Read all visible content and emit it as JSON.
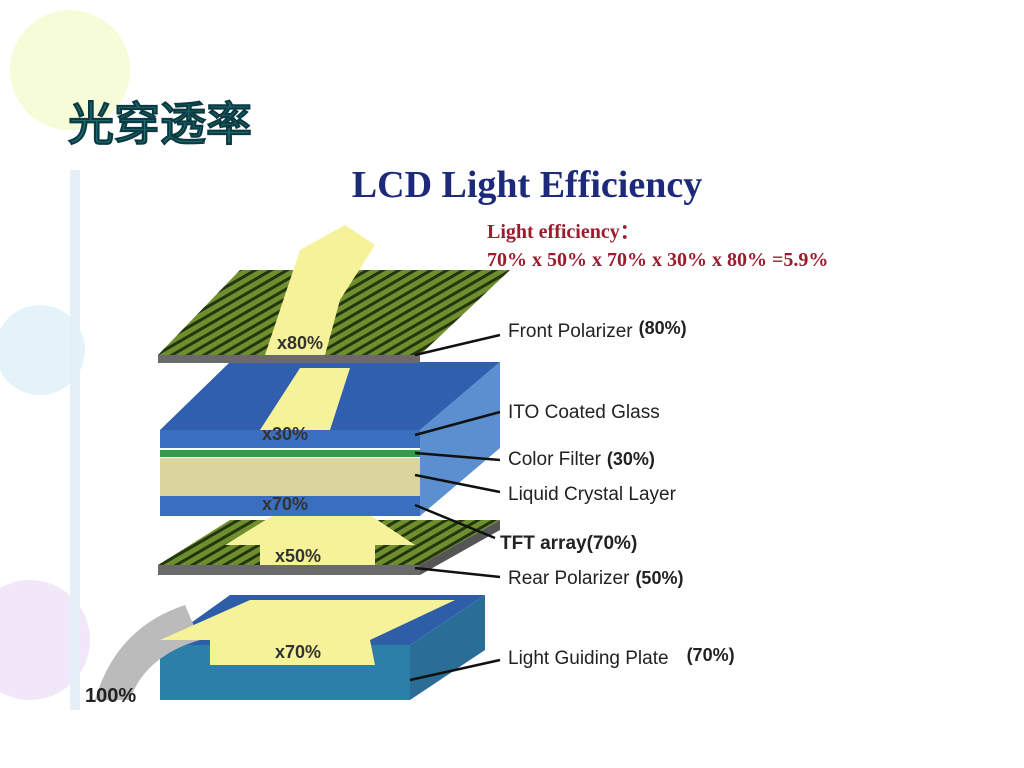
{
  "slide": {
    "title": "光穿透率"
  },
  "figure": {
    "title": "LCD Light Efficiency",
    "efficiency": {
      "label": "Light efficiency：",
      "formula": "70% x 50% x 70% x 30% x 80% =5.9%"
    },
    "layers": [
      {
        "name": "Front Polarizer",
        "factor": "(80%)",
        "mark": "x80%"
      },
      {
        "name": "ITO Coated Glass"
      },
      {
        "name": "Color Filter",
        "factor": "(30%)",
        "mark": "x30%"
      },
      {
        "name": "Liquid Crystal Layer"
      },
      {
        "name": "TFT array(70%)",
        "mark": "x70%"
      },
      {
        "name": "Rear Polarizer",
        "factor": "(50%)",
        "mark": "x50%"
      },
      {
        "name": "Light Guiding Plate",
        "factor": "(70%)",
        "mark": "x70%"
      }
    ],
    "source": "100%"
  }
}
